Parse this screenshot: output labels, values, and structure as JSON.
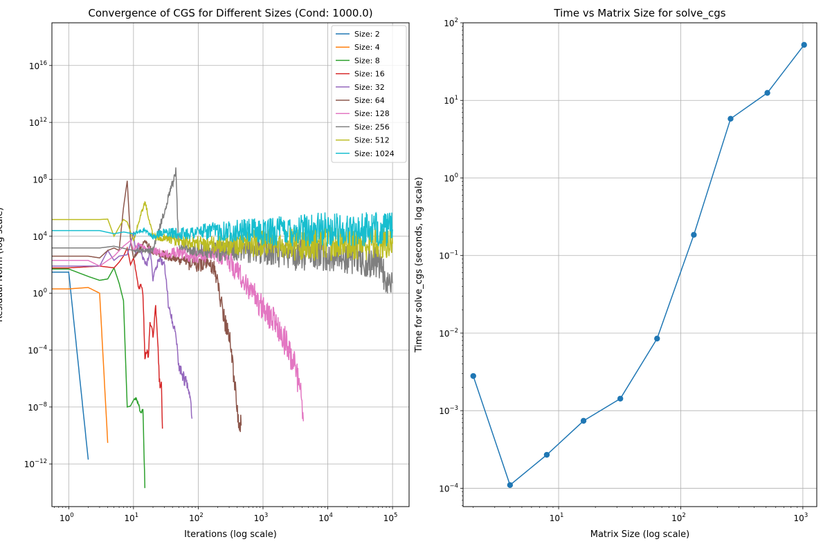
{
  "chart_data": [
    {
      "type": "line",
      "title": "Convergence of CGS for Different Sizes (Cond: 1000.0)",
      "xlabel": "Iterations (log scale)",
      "ylabel": "Residual Norm (log scale)",
      "xscale": "log",
      "yscale": "log",
      "xlim": [
        0.55,
        180000
      ],
      "ylim": [
        1e-15,
        1e+19
      ],
      "x_ticks": [
        {
          "value": 1,
          "base": "10",
          "exp": "0"
        },
        {
          "value": 10,
          "base": "10",
          "exp": "1"
        },
        {
          "value": 100,
          "base": "10",
          "exp": "2"
        },
        {
          "value": 1000,
          "base": "10",
          "exp": "3"
        },
        {
          "value": 10000,
          "base": "10",
          "exp": "4"
        },
        {
          "value": 100000,
          "base": "10",
          "exp": "5"
        }
      ],
      "y_ticks": [
        {
          "value": 1e-12,
          "base": "10",
          "exp": "−12"
        },
        {
          "value": 1e-08,
          "base": "10",
          "exp": "−8"
        },
        {
          "value": 0.0001,
          "base": "10",
          "exp": "−4"
        },
        {
          "value": 1,
          "base": "10",
          "exp": "0"
        },
        {
          "value": 10000.0,
          "base": "10",
          "exp": "4"
        },
        {
          "value": 100000000.0,
          "base": "10",
          "exp": "8"
        },
        {
          "value": 1000000000000.0,
          "base": "10",
          "exp": "12"
        },
        {
          "value": 1e+16,
          "base": "10",
          "exp": "16"
        }
      ],
      "grid": true,
      "legend": "top-right",
      "series": [
        {
          "name": "Size: 2",
          "color": "#1f77b4",
          "points": [
            [
              0.55,
              30
            ],
            [
              1,
              30
            ],
            [
              2,
              2e-12
            ]
          ]
        },
        {
          "name": "Size: 4",
          "color": "#ff7f0e",
          "points": [
            [
              0.55,
              2
            ],
            [
              1,
              2
            ],
            [
              2,
              2.5
            ],
            [
              3,
              1
            ],
            [
              4,
              3e-11
            ]
          ]
        },
        {
          "name": "Size: 8",
          "color": "#2ca02c",
          "points": [
            [
              0.55,
              50
            ],
            [
              1,
              50
            ],
            [
              2,
              15
            ],
            [
              3,
              8
            ],
            [
              4,
              10
            ],
            [
              5,
              60
            ],
            [
              6,
              5
            ],
            [
              7,
              0.3
            ],
            [
              8,
              1e-08
            ],
            [
              9,
              1.2e-08
            ],
            [
              10,
              3e-08
            ],
            [
              11,
              4e-08
            ],
            [
              12,
              1.5e-08
            ],
            [
              13,
              3e-09
            ],
            [
              14,
              6e-09
            ],
            [
              15,
              2e-14
            ]
          ]
        },
        {
          "name": "Size: 16",
          "color": "#d62728",
          "points": [
            [
              0.55,
              60
            ],
            [
              1,
              60
            ],
            [
              3,
              80
            ],
            [
              5,
              60
            ],
            [
              6,
              150
            ],
            [
              7,
              400
            ],
            [
              8,
              1500
            ],
            [
              9,
              100
            ],
            [
              10,
              300
            ],
            [
              11,
              30
            ],
            [
              12,
              2
            ],
            [
              13,
              5
            ],
            [
              14,
              1
            ],
            [
              15,
              2e-05
            ],
            [
              16,
              0.0001
            ],
            [
              17,
              3e-05
            ],
            [
              18,
              0.01
            ],
            [
              20,
              0.001
            ],
            [
              22,
              0.1
            ],
            [
              24,
              0.0001
            ],
            [
              25,
              1e-06
            ],
            [
              26,
              2e-07
            ],
            [
              27,
              5e-07
            ],
            [
              28,
              3e-10
            ]
          ]
        },
        {
          "name": "Size: 32",
          "color": "#9467bd",
          "points": [
            [
              0.55,
              80
            ],
            [
              1,
              80
            ],
            [
              3,
              80
            ],
            [
              4,
              1000
            ],
            [
              5,
              200
            ],
            [
              6,
              400
            ],
            [
              8,
              500
            ],
            [
              9,
              3000
            ],
            [
              10,
              20000
            ],
            [
              11,
              400
            ],
            [
              12,
              3000
            ],
            [
              14,
              300
            ],
            [
              16,
              100
            ],
            [
              18,
              1000
            ],
            [
              20,
              10
            ],
            [
              25,
              300
            ],
            [
              30,
              100
            ],
            [
              35,
              0.1
            ],
            [
              40,
              0.01
            ],
            [
              45,
              0.001
            ],
            [
              50,
              1e-05
            ],
            [
              55,
              3e-06
            ],
            [
              60,
              1e-06
            ],
            [
              70,
              3e-07
            ],
            [
              75,
              1e-07
            ],
            [
              80,
              1.5e-09
            ]
          ]
        },
        {
          "name": "Size: 64",
          "color": "#8c564b",
          "points": [
            [
              0.55,
              400
            ],
            [
              1,
              400
            ],
            [
              2,
              400
            ],
            [
              3,
              300
            ],
            [
              4,
              1000
            ],
            [
              5,
              1500
            ],
            [
              6,
              1000
            ],
            [
              7,
              1000000.0
            ],
            [
              8,
              80000000.0
            ],
            [
              9,
              5000
            ],
            [
              10,
              300
            ],
            [
              12,
              1000
            ],
            [
              15,
              5000
            ],
            [
              20,
              800
            ],
            [
              30,
              500
            ],
            [
              40,
              300
            ],
            [
              60,
              150
            ],
            [
              90,
              100
            ],
            [
              130,
              100
            ],
            [
              180,
              50
            ],
            [
              220,
              0.5
            ],
            [
              260,
              0.01
            ],
            [
              300,
              0.001
            ],
            [
              340,
              1e-05
            ],
            [
              380,
              1e-07
            ],
            [
              420,
              1e-09
            ],
            [
              460,
              5e-10
            ]
          ]
        },
        {
          "name": "Size: 128",
          "color": "#e377c2",
          "points": [
            [
              0.55,
              200
            ],
            [
              1,
              200
            ],
            [
              2,
              200
            ],
            [
              3,
              80
            ],
            [
              4,
              200
            ],
            [
              5,
              400
            ],
            [
              7,
              2000
            ],
            [
              9,
              5000
            ],
            [
              10,
              1000
            ],
            [
              12,
              3000
            ],
            [
              15,
              1500
            ],
            [
              20,
              1000
            ],
            [
              30,
              500
            ],
            [
              50,
              800
            ],
            [
              80,
              400
            ],
            [
              120,
              500
            ],
            [
              200,
              600
            ],
            [
              300,
              200
            ],
            [
              500,
              10
            ],
            [
              700,
              1
            ],
            [
              1000,
              0.1
            ],
            [
              1500,
              0.01
            ],
            [
              2000,
              0.001
            ],
            [
              2500,
              0.0001
            ],
            [
              3000,
              1e-05
            ],
            [
              3500,
              1e-06
            ],
            [
              4000,
              1e-08
            ],
            [
              4200,
              1e-09
            ]
          ]
        },
        {
          "name": "Size: 256",
          "color": "#7f7f7f",
          "points": [
            [
              0.55,
              1500
            ],
            [
              1,
              1500
            ],
            [
              3,
              1500
            ],
            [
              5,
              2000
            ],
            [
              10,
              1000
            ],
            [
              20,
              1000
            ],
            [
              45,
              300000000.0
            ],
            [
              50,
              2000
            ],
            [
              100,
              1000
            ],
            [
              200,
              800
            ],
            [
              500,
              1000
            ],
            [
              1000,
              1000
            ],
            [
              3000,
              600
            ],
            [
              10000,
              500
            ],
            [
              30000,
              300
            ],
            [
              60000,
              100
            ],
            [
              80000,
              10
            ],
            [
              100000,
              5
            ]
          ]
        },
        {
          "name": "Size: 512",
          "color": "#bcbd22",
          "points": [
            [
              0.55,
              150000
            ],
            [
              1,
              150000
            ],
            [
              3,
              150000
            ],
            [
              4,
              160000
            ],
            [
              5,
              10000
            ],
            [
              7,
              150000
            ],
            [
              8,
              100000
            ],
            [
              10,
              5000
            ],
            [
              15,
              3000000.0
            ],
            [
              20,
              10000.0
            ],
            [
              50,
              5000
            ],
            [
              100,
              3000
            ],
            [
              300,
              2500
            ],
            [
              1000,
              3000
            ],
            [
              3000,
              3000
            ],
            [
              10000,
              3000
            ],
            [
              30000,
              3000
            ],
            [
              100000,
              3000
            ]
          ]
        },
        {
          "name": "Size: 1024",
          "color": "#17becf",
          "points": [
            [
              0.55,
              25000
            ],
            [
              1,
              25000
            ],
            [
              3,
              25000
            ],
            [
              5,
              15000
            ],
            [
              7,
              20000
            ],
            [
              10,
              15000
            ],
            [
              15,
              30000
            ],
            [
              20,
              10000
            ],
            [
              30,
              20000
            ],
            [
              50,
              15000
            ],
            [
              100,
              20000
            ],
            [
              300,
              25000
            ],
            [
              1000,
              20000
            ],
            [
              3000,
              30000
            ],
            [
              10000,
              30000
            ],
            [
              30000,
              30000
            ],
            [
              100000,
              30000
            ]
          ]
        }
      ]
    },
    {
      "type": "line",
      "title": "Time vs Matrix Size for solve_cgs",
      "xlabel": "Matrix Size (log scale)",
      "ylabel": "Time for solve_cgs (seconds, log scale)",
      "xscale": "log",
      "yscale": "log",
      "xlim": [
        1.65,
        1300
      ],
      "ylim": [
        5.8e-05,
        100
      ],
      "x_ticks": [
        {
          "value": 10,
          "base": "10",
          "exp": "1"
        },
        {
          "value": 100,
          "base": "10",
          "exp": "2"
        },
        {
          "value": 1000,
          "base": "10",
          "exp": "3"
        }
      ],
      "y_ticks": [
        {
          "value": 0.0001,
          "base": "10",
          "exp": "−4"
        },
        {
          "value": 0.001,
          "base": "10",
          "exp": "−3"
        },
        {
          "value": 0.01,
          "base": "10",
          "exp": "−2"
        },
        {
          "value": 0.1,
          "base": "10",
          "exp": "−1"
        },
        {
          "value": 1,
          "base": "10",
          "exp": "0"
        },
        {
          "value": 10,
          "base": "10",
          "exp": "1"
        },
        {
          "value": 100,
          "base": "10",
          "exp": "2"
        }
      ],
      "grid": true,
      "series": [
        {
          "color": "#1f77b4",
          "marker": "circle",
          "x": [
            2,
            4,
            8,
            16,
            32,
            64,
            128,
            256,
            512,
            1024
          ],
          "y": [
            0.0028,
            0.00011,
            0.00027,
            0.00074,
            0.00143,
            0.0085,
            0.185,
            5.8,
            12.5,
            52
          ]
        }
      ]
    }
  ]
}
